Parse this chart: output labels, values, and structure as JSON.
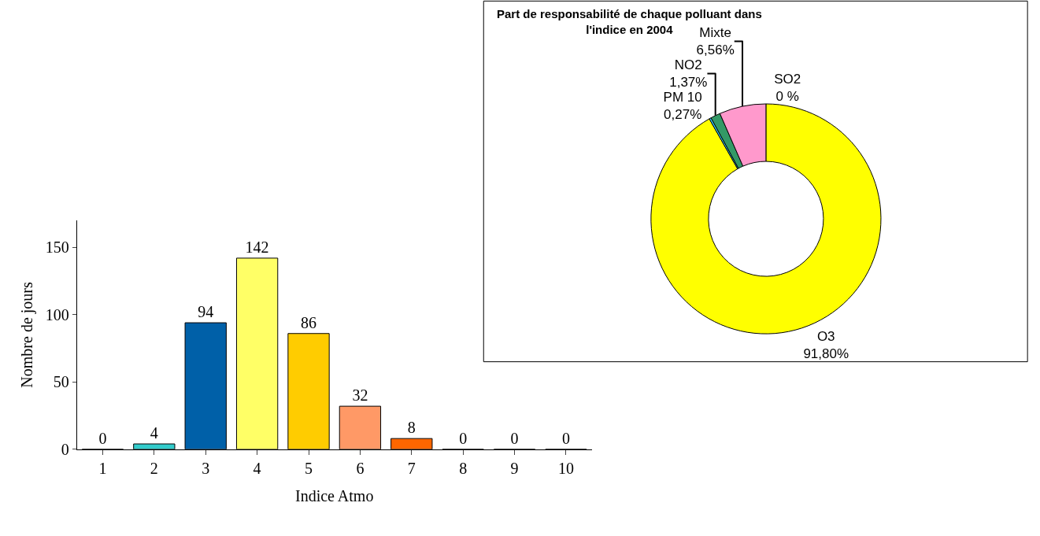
{
  "chart_data": [
    {
      "type": "bar",
      "xlabel": "Indice Atmo",
      "ylabel": "Nombre de jours",
      "categories": [
        "1",
        "2",
        "3",
        "4",
        "5",
        "6",
        "7",
        "8",
        "9",
        "10"
      ],
      "values": [
        0,
        4,
        94,
        142,
        86,
        32,
        8,
        0,
        0,
        0
      ],
      "colors": [
        "#ffffff",
        "#33cccc",
        "#0060a8",
        "#ffff66",
        "#ffcc00",
        "#ff9966",
        "#ff6600",
        "#ffffff",
        "#ffffff",
        "#ffffff"
      ],
      "ylim": [
        0,
        170
      ],
      "yticks": [
        0,
        50,
        100,
        150
      ],
      "data_labels": true
    },
    {
      "type": "donut",
      "title": "Part de responsabilité de chaque polluant dans l'indice en 2004",
      "categories": [
        "SO2",
        "O3",
        "PM 10",
        "NO2",
        "Mixte"
      ],
      "values": [
        0,
        91.8,
        0.27,
        1.37,
        6.56
      ],
      "value_labels": [
        "0 %",
        "91,80%",
        "0,27%",
        "1,37%",
        "6,56%"
      ],
      "colors": [
        "#ff6600",
        "#ffff00",
        "#33ccff",
        "#339966",
        "#ff99cc"
      ]
    }
  ]
}
